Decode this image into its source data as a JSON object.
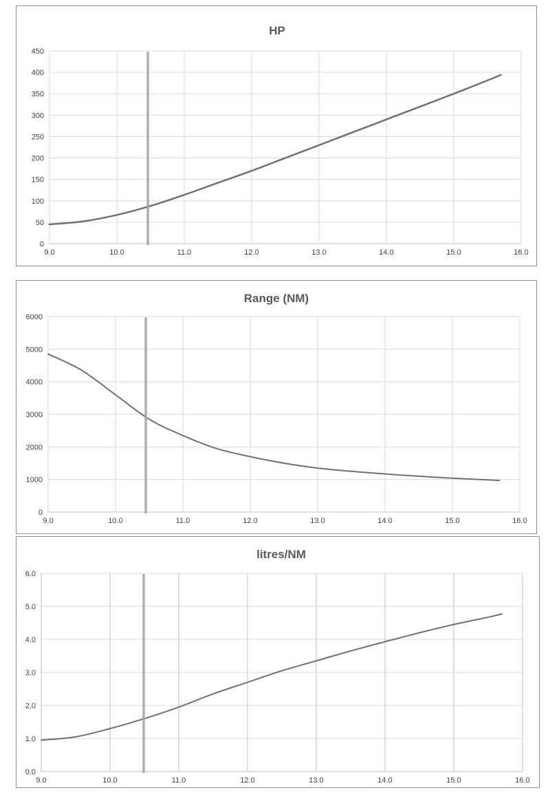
{
  "chart_data": [
    {
      "type": "line",
      "title": "HP",
      "xlabel": "",
      "ylabel": "",
      "xlim": [
        9,
        16
      ],
      "ylim": [
        0,
        450
      ],
      "xticks": [
        "9.0",
        "10.0",
        "11.0",
        "12.0",
        "13.0",
        "14.0",
        "15.0",
        "16.0"
      ],
      "yticks": [
        "0",
        "50",
        "100",
        "150",
        "200",
        "250",
        "300",
        "350",
        "400",
        "450"
      ],
      "vertical_gridlines": "light",
      "marker_x": 10.46,
      "series": [
        {
          "x": [
            9.0,
            9.5,
            10.0,
            10.5,
            11.0,
            11.5,
            12.0,
            12.5,
            13.0,
            13.5,
            14.0,
            14.5,
            15.0,
            15.5,
            15.7
          ],
          "y": [
            45,
            52,
            67,
            88,
            114,
            142,
            170,
            200,
            230,
            260,
            290,
            320,
            350,
            381,
            394
          ]
        }
      ]
    },
    {
      "type": "line",
      "title": "Range (NM)",
      "xlabel": "",
      "ylabel": "",
      "xlim": [
        9,
        16
      ],
      "ylim": [
        0,
        6000
      ],
      "xticks": [
        "9.0",
        "10.0",
        "11.0",
        "12.0",
        "13.0",
        "14.0",
        "15.0",
        "16.0"
      ],
      "yticks": [
        "0",
        "1000",
        "2000",
        "3000",
        "4000",
        "5000",
        "6000"
      ],
      "vertical_gridlines": "light",
      "marker_x": 10.45,
      "series": [
        {
          "x": [
            9.0,
            9.5,
            10.0,
            10.5,
            11.0,
            11.5,
            12.0,
            12.5,
            13.0,
            13.5,
            14.0,
            14.5,
            15.0,
            15.5,
            15.7
          ],
          "y": [
            4850,
            4350,
            3600,
            2850,
            2350,
            1950,
            1700,
            1500,
            1350,
            1250,
            1170,
            1100,
            1040,
            990,
            970
          ]
        }
      ]
    },
    {
      "type": "line",
      "title": "litres/NM",
      "xlabel": "",
      "ylabel": "",
      "xlim": [
        9,
        16
      ],
      "ylim": [
        0,
        6
      ],
      "xticks": [
        "9.0",
        "10.0",
        "11.0",
        "12.0",
        "13.0",
        "14.0",
        "15.0",
        "16.0"
      ],
      "yticks": [
        "0.0",
        "1.0",
        "2.0",
        "3.0",
        "4.0",
        "5.0",
        "6.0"
      ],
      "vertical_gridlines": "dark",
      "marker_x": 10.49,
      "series": [
        {
          "x": [
            9.0,
            9.5,
            10.0,
            10.5,
            11.0,
            11.5,
            12.0,
            12.5,
            13.0,
            13.5,
            14.0,
            14.5,
            15.0,
            15.5,
            15.7
          ],
          "y": [
            0.95,
            1.05,
            1.3,
            1.6,
            1.95,
            2.35,
            2.7,
            3.05,
            3.35,
            3.65,
            3.93,
            4.2,
            4.45,
            4.67,
            4.77
          ]
        }
      ]
    }
  ]
}
